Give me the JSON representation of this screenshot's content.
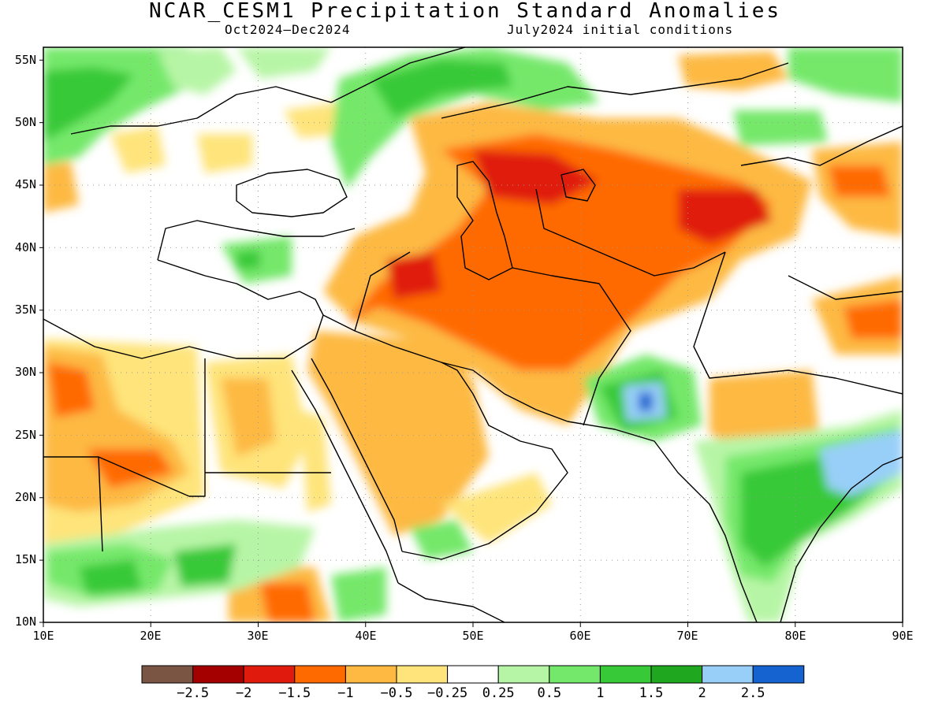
{
  "title": "NCAR_CESM1 Precipitation Standard Anomalies",
  "subtitle_left": "Oct2024–Dec2024",
  "subtitle_right": "July2024 initial conditions",
  "map": {
    "lon_range": [
      10,
      90
    ],
    "lat_range": [
      10,
      56
    ],
    "lon_ticks": [
      "10E",
      "20E",
      "30E",
      "40E",
      "50E",
      "60E",
      "70E",
      "80E",
      "90E"
    ],
    "lat_ticks": [
      "55N",
      "50N",
      "45N",
      "40N",
      "35N",
      "30N",
      "25N",
      "20N",
      "15N",
      "10N"
    ],
    "gridlines": "dotted"
  },
  "colorbar": {
    "colors": [
      "#7a5544",
      "#a50000",
      "#e01a0c",
      "#ff6a00",
      "#fdb942",
      "#fee47a",
      "#ffffff",
      "#b7f5a6",
      "#74e86b",
      "#38c938",
      "#1fa81f",
      "#98cff8",
      "#1463d1"
    ],
    "labels": [
      "−2.5",
      "−2",
      "−1.5",
      "−1",
      "−0.5",
      "−0.25",
      "0.25",
      "0.5",
      "1",
      "1.5",
      "2",
      "2.5"
    ]
  },
  "palette": {
    "dry_extreme": "#7a5544",
    "dry_strong": "#a50000",
    "dry_high": "#e01a0c",
    "dry_mid": "#ff6a00",
    "dry_low": "#fdb942",
    "dry_weak": "#fee47a",
    "wet_weak": "#b7f5a6",
    "wet_low": "#74e86b",
    "wet_mid": "#38c938",
    "wet_high": "#1fa81f",
    "wet_strong": "#98cff8",
    "wet_extreme": "#1463d1"
  }
}
